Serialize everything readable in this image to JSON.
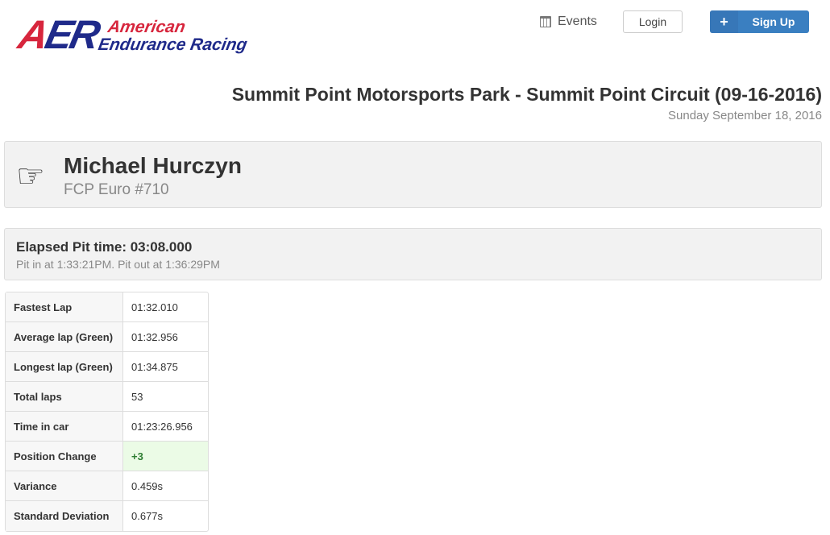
{
  "logo": {
    "mark": "AER",
    "line1": "American",
    "line2": "Endurance Racing"
  },
  "nav": {
    "events": "Events",
    "login": "Login",
    "signup": "Sign Up",
    "events_icon": "calendar-icon",
    "signup_icon": "plus-icon"
  },
  "event": {
    "title": "Summit Point Motorsports Park - Summit Point Circuit (09-16-2016)",
    "date": "Sunday September 18, 2016"
  },
  "driver": {
    "name": "Michael Hurczyn",
    "team": "FCP Euro #710",
    "icon": "hand-pointing-right-icon"
  },
  "pit": {
    "title": "Elapsed Pit time: 03:08.000",
    "detail": "Pit in at 1:33:21PM. Pit out at 1:36:29PM"
  },
  "stats": [
    {
      "label": "Fastest Lap",
      "value": "01:32.010"
    },
    {
      "label": "Average lap (Green)",
      "value": "01:32.956"
    },
    {
      "label": "Longest lap (Green)",
      "value": "01:34.875"
    },
    {
      "label": "Total laps",
      "value": "53"
    },
    {
      "label": "Time in car",
      "value": "01:23:26.956"
    },
    {
      "label": "Position Change",
      "value": "+3",
      "highlight": "#ebfbe6"
    },
    {
      "label": "Variance",
      "value": "0.459s"
    },
    {
      "label": "Standard Deviation",
      "value": "0.677s"
    }
  ]
}
